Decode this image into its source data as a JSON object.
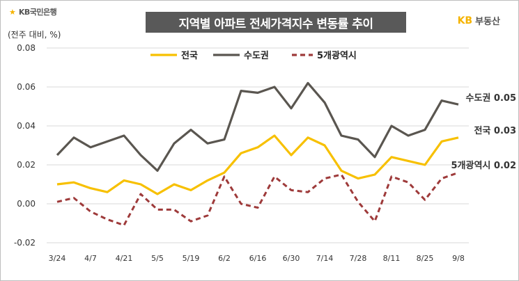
{
  "header": {
    "bank_logo": "KB국민은행",
    "title": "지역별 아파트 전세가격지수 변동률 추이",
    "brand_logo_kb": "KB",
    "brand_logo_text": "부동산"
  },
  "chart_data": {
    "type": "line",
    "title": "지역별 아파트 전세가격지수 변동률 추이",
    "ylabel": "(전주 대비, %)",
    "xlabel": "",
    "ylim": [
      -0.02,
      0.08
    ],
    "yticks": [
      "0.08",
      "0.06",
      "0.04",
      "0.02",
      "0.00",
      "-0.02"
    ],
    "ytick_values": [
      0.08,
      0.06,
      0.04,
      0.02,
      0.0,
      -0.02
    ],
    "grid": true,
    "legend_position": "top",
    "x_tick_labels": [
      "3/24",
      "4/7",
      "4/21",
      "5/5",
      "5/19",
      "6/2",
      "6/16",
      "6/30",
      "7/14",
      "7/28",
      "8/11",
      "8/25",
      "9/8"
    ],
    "x_tick_indices": [
      0,
      2,
      4,
      6,
      8,
      10,
      12,
      14,
      16,
      18,
      20,
      22,
      24
    ],
    "x_count": 25,
    "series": [
      {
        "name": "전국",
        "color": "#f7c000",
        "style": "solid",
        "end_label": "전국 0.03",
        "values": [
          0.01,
          0.011,
          0.008,
          0.006,
          0.012,
          0.01,
          0.005,
          0.01,
          0.007,
          0.012,
          0.016,
          0.026,
          0.029,
          0.035,
          0.025,
          0.034,
          0.03,
          0.017,
          0.013,
          0.015,
          0.024,
          0.022,
          0.02,
          0.032,
          0.034
        ]
      },
      {
        "name": "수도권",
        "color": "#5a5650",
        "style": "solid",
        "end_label": "수도권 0.05",
        "values": [
          0.025,
          0.034,
          0.029,
          0.032,
          0.035,
          0.025,
          0.017,
          0.031,
          0.038,
          0.031,
          0.033,
          0.058,
          0.057,
          0.06,
          0.049,
          0.062,
          0.052,
          0.035,
          0.033,
          0.024,
          0.04,
          0.035,
          0.038,
          0.053,
          0.051
        ]
      },
      {
        "name": "5개광역시",
        "color": "#9e3a3a",
        "style": "dashed",
        "end_label": "5개광역시 0.02",
        "values": [
          0.001,
          0.003,
          -0.004,
          -0.008,
          -0.011,
          0.005,
          -0.003,
          -0.003,
          -0.009,
          -0.006,
          0.014,
          0.0,
          -0.002,
          0.014,
          0.007,
          0.006,
          0.013,
          0.015,
          0.001,
          -0.009,
          0.014,
          0.011,
          0.002,
          0.013,
          0.016
        ]
      }
    ]
  }
}
